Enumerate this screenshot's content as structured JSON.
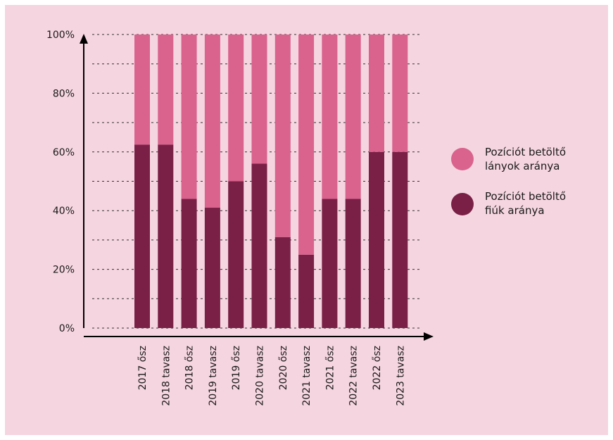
{
  "colors": {
    "panel_bg": "#f5d5e0",
    "girls": "#d9638d",
    "boys": "#7a2046",
    "grid": "#333333",
    "axis": "#000000"
  },
  "legend": {
    "girls_line1": "Pozíciót betöltő",
    "girls_line2": "lányok aránya",
    "boys_line1": "Pozíciót betöltő",
    "boys_line2": "fiúk aránya"
  },
  "chart_data": {
    "type": "bar",
    "stacked": true,
    "title": "",
    "xlabel": "",
    "ylabel": "",
    "ylim": [
      0,
      100
    ],
    "yticks": [
      "0%",
      "20%",
      "40%",
      "60%",
      "80%",
      "100%"
    ],
    "categories": [
      "2017 ősz",
      "2018 tavasz",
      "2018 ősz",
      "2019 tavasz",
      "2019 ősz",
      "2020 tavasz",
      "2020 ősz",
      "2021 tavasz",
      "2021 ősz",
      "2022 tavasz",
      "2022 ősz",
      "2023 tavasz"
    ],
    "series": [
      {
        "name": "Pozíciót betöltő fiúk aránya",
        "color": "#7a2046",
        "values": [
          62.5,
          62.5,
          44,
          41,
          50,
          56,
          31,
          25,
          44,
          44,
          60,
          60
        ]
      },
      {
        "name": "Pozíciót betöltő lányok aránya",
        "color": "#d9638d",
        "values": [
          37.5,
          37.5,
          56,
          59,
          50,
          44,
          69,
          75,
          56,
          56,
          40,
          40
        ]
      }
    ],
    "grid": true,
    "legend_position": "right"
  }
}
